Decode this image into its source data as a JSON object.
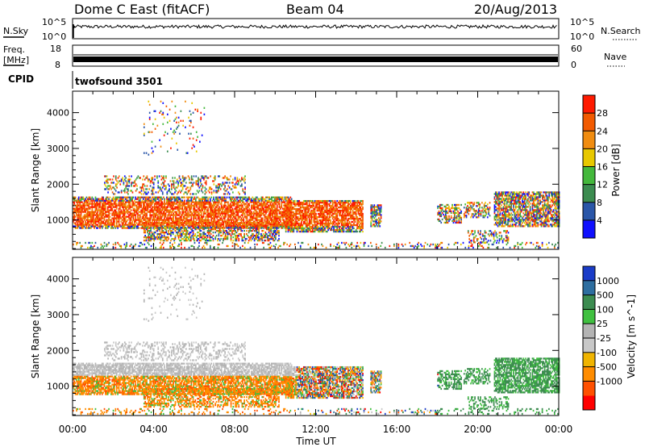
{
  "header": {
    "title": "Dome C East (fitACF)",
    "beam": "Beam 04",
    "date": "20/Aug/2013"
  },
  "status_panels": {
    "nsky_label": "N.Sky",
    "nsearch_label": "N.Search",
    "noise_ticks_left": [
      "10^5",
      "10^0"
    ],
    "noise_ticks_right": [
      "10^5",
      "10^0"
    ],
    "freq_label": "Freq.",
    "freq_unit": "[MHz]",
    "freq_ticks": [
      "18",
      "8"
    ],
    "nave_label": "Nave",
    "nave_ticks": [
      "60",
      "0"
    ],
    "cpid_label": "CPID",
    "cpid_value": "twofsound 3501"
  },
  "colors": {
    "power_scale": [
      "#1010ff",
      "#2a56a8",
      "#3c8c50",
      "#44b83c",
      "#e8c800",
      "#f08c10",
      "#f25a00",
      "#ff1a00"
    ],
    "velocity_scale": [
      "#ff0000",
      "#ff5000",
      "#ff8c00",
      "#f0b400",
      "#c8c8c8",
      "#b4b4b4",
      "#40c040",
      "#3c8c50",
      "#2e6ea0",
      "#1a3cc8"
    ]
  },
  "chart_data": [
    {
      "type": "heatmap",
      "name": "power",
      "x_ticks": [
        "00:00",
        "04:00",
        "08:00",
        "12:00",
        "16:00",
        "20:00",
        "00:00"
      ],
      "x_range_hours": [
        0,
        24
      ],
      "ylabel": "Slant Range [km]",
      "y_ticks": [
        "1000",
        "2000",
        "3000",
        "4000"
      ],
      "y_range_km": [
        180,
        4600
      ],
      "colorbar_label": "Power [dB]",
      "colorbar_ticks": [
        "4",
        "8",
        "12",
        "16",
        "20",
        "24",
        "28"
      ],
      "colorbar_range": [
        0,
        32
      ]
    },
    {
      "type": "heatmap",
      "name": "velocity",
      "x_ticks": [
        "00:00",
        "04:00",
        "08:00",
        "12:00",
        "16:00",
        "20:00",
        "00:00"
      ],
      "x_range_hours": [
        0,
        24
      ],
      "xlabel": "Time UT",
      "ylabel": "Slant Range [km]",
      "y_ticks": [
        "1000",
        "2000",
        "3000",
        "4000"
      ],
      "y_range_km": [
        180,
        4600
      ],
      "colorbar_label": "Velocity [m s^-1]",
      "colorbar_ticks": [
        "1000",
        "500",
        "100",
        "25",
        "-25",
        "-100",
        "-500",
        "-1000"
      ]
    }
  ]
}
